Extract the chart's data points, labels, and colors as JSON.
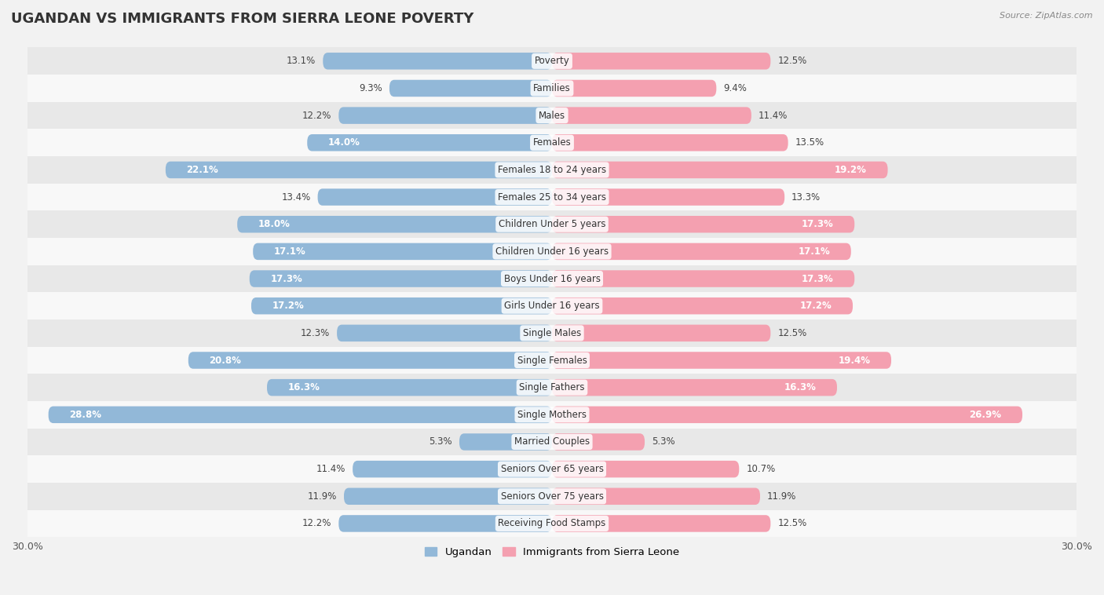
{
  "title": "UGANDAN VS IMMIGRANTS FROM SIERRA LEONE POVERTY",
  "source": "Source: ZipAtlas.com",
  "categories": [
    "Poverty",
    "Families",
    "Males",
    "Females",
    "Females 18 to 24 years",
    "Females 25 to 34 years",
    "Children Under 5 years",
    "Children Under 16 years",
    "Boys Under 16 years",
    "Girls Under 16 years",
    "Single Males",
    "Single Females",
    "Single Fathers",
    "Single Mothers",
    "Married Couples",
    "Seniors Over 65 years",
    "Seniors Over 75 years",
    "Receiving Food Stamps"
  ],
  "ugandan": [
    13.1,
    9.3,
    12.2,
    14.0,
    22.1,
    13.4,
    18.0,
    17.1,
    17.3,
    17.2,
    12.3,
    20.8,
    16.3,
    28.8,
    5.3,
    11.4,
    11.9,
    12.2
  ],
  "sierra_leone": [
    12.5,
    9.4,
    11.4,
    13.5,
    19.2,
    13.3,
    17.3,
    17.1,
    17.3,
    17.2,
    12.5,
    19.4,
    16.3,
    26.9,
    5.3,
    10.7,
    11.9,
    12.5
  ],
  "ugandan_color": "#92b8d8",
  "sierra_leone_color": "#f4a0b0",
  "background_color": "#f2f2f2",
  "row_color_even": "#e8e8e8",
  "row_color_odd": "#f8f8f8",
  "axis_max": 30.0,
  "bar_height": 0.62,
  "legend_ugandan": "Ugandan",
  "legend_sierra_leone": "Immigrants from Sierra Leone",
  "title_fontsize": 13,
  "label_fontsize": 8.5,
  "value_fontsize": 8.5,
  "inside_threshold": 14.0
}
